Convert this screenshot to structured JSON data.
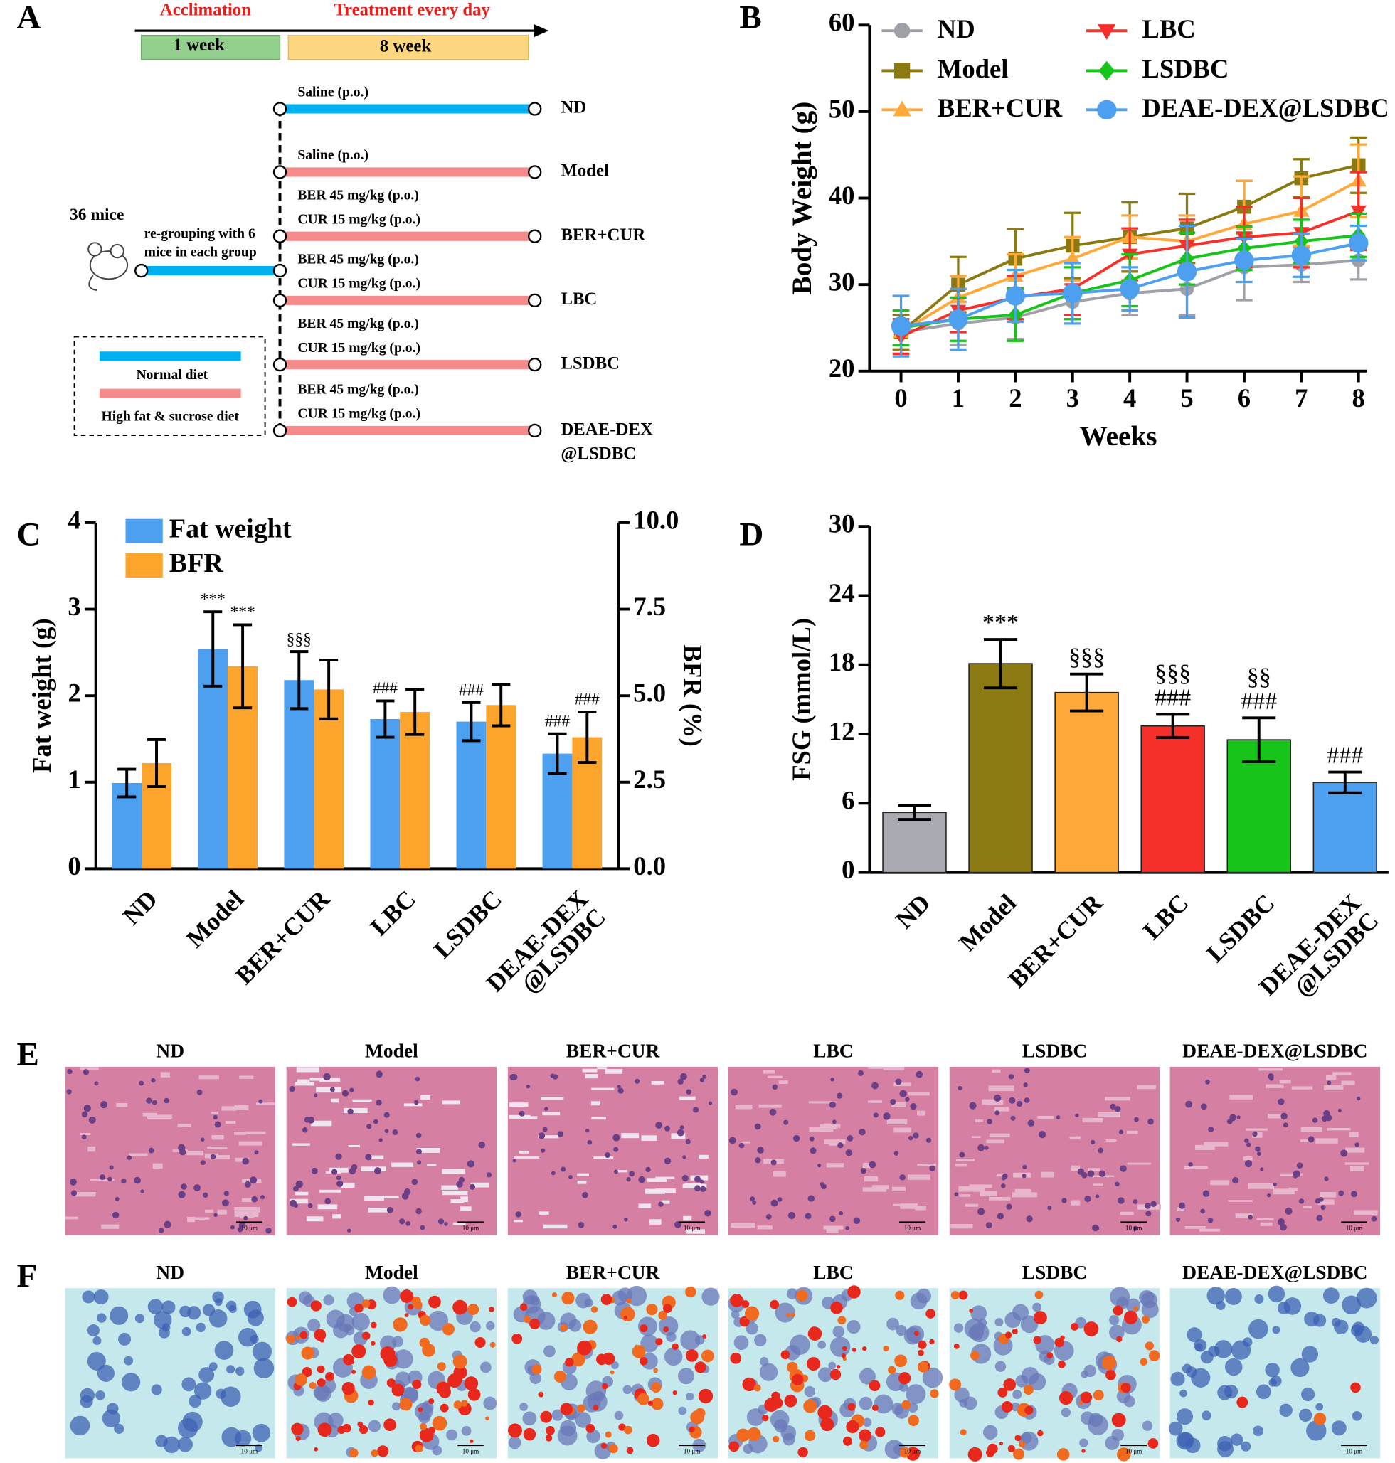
{
  "schematic": {
    "panel": "A",
    "acclimation": "Acclimation",
    "treatment": "Treatment every day",
    "phase1": "1 week",
    "phase2": "8 week",
    "mice": "36 mice",
    "regroup": "re-grouping with 6\nmice in each group",
    "legend": [
      "Normal diet",
      "High fat & sucrose diet"
    ],
    "groups": [
      {
        "label": "ND",
        "doses": [
          "Saline (p.o.)"
        ]
      },
      {
        "label": "Model",
        "doses": [
          "Saline (p.o.)"
        ]
      },
      {
        "label": "BER+CUR",
        "doses": [
          "BER 45 mg/kg (p.o.)",
          "CUR 15 mg/kg (p.o.)"
        ]
      },
      {
        "label": "LBC",
        "doses": [
          "BER 45 mg/kg (p.o.)",
          "CUR 15 mg/kg (p.o.)"
        ]
      },
      {
        "label": "LSDBC",
        "doses": [
          "BER 45 mg/kg (p.o.)",
          "CUR 15 mg/kg (p.o.)"
        ]
      },
      {
        "label": "DEAE-DEX\n@LSDBC",
        "doses": [
          "BER 45 mg/kg (p.o.)",
          "CUR 15 mg/kg (p.o.)"
        ]
      }
    ]
  },
  "chart_data": [
    {
      "type": "line",
      "panel": "B",
      "xlabel": "Weeks",
      "ylabel": "Body Weight (g)",
      "x": [
        0,
        1,
        2,
        3,
        4,
        5,
        6,
        7,
        8
      ],
      "xlim": [
        -0.55,
        8.15
      ],
      "xticks": [
        0,
        1,
        2,
        3,
        4,
        5,
        6,
        7,
        8
      ],
      "ylim": [
        20,
        60
      ],
      "yticks": [
        20,
        30,
        40,
        50,
        60
      ],
      "series": [
        {
          "name": "ND",
          "color": "#a0a0a8",
          "marker": "circle",
          "values": [
            24.5,
            25.5,
            26.2,
            28,
            29,
            29.5,
            32,
            32.3,
            32.8
          ],
          "errors": [
            2,
            2.5,
            2.5,
            2,
            2.5,
            3,
            3.8,
            2,
            2.2
          ]
        },
        {
          "name": "Model",
          "color": "#8b7a12",
          "marker": "square",
          "values": [
            24.5,
            30,
            33,
            34.5,
            35.5,
            36.5,
            39,
            42.3,
            43.8
          ],
          "errors": [
            2,
            3.2,
            3.4,
            3.8,
            4,
            4,
            3,
            2.2,
            3.2
          ]
        },
        {
          "name": "BER+CUR",
          "color": "#fea93a",
          "marker": "triangle",
          "values": [
            24.5,
            28.5,
            31,
            33,
            35.5,
            35,
            37,
            38.5,
            42
          ],
          "errors": [
            2.5,
            2.5,
            2.5,
            2.5,
            2.5,
            3,
            5,
            4,
            4.2
          ]
        },
        {
          "name": "LBC",
          "color": "#f5302a",
          "marker": "triangle-down",
          "values": [
            24,
            27,
            28.5,
            29.5,
            33.5,
            34.5,
            35.5,
            36,
            38.5
          ],
          "errors": [
            2,
            2.5,
            2.5,
            3,
            3,
            3,
            3.5,
            4,
            4.5
          ]
        },
        {
          "name": "LSDBC",
          "color": "#16c41a",
          "marker": "diamond",
          "values": [
            25,
            26,
            26.5,
            29,
            30.5,
            33,
            34.2,
            35,
            35.7
          ],
          "errors": [
            2,
            2.5,
            3,
            3,
            3,
            3,
            2.5,
            2.5,
            2.5
          ]
        },
        {
          "name": "DEAE-DEX@LSDBC",
          "color": "#4da0f0",
          "marker": "circle",
          "values": [
            25.2,
            26,
            28.7,
            29,
            29.5,
            31.5,
            32.8,
            33.4,
            34.8
          ],
          "errors": [
            3.5,
            3.5,
            3,
            3.5,
            2.5,
            5.3,
            2.5,
            2.5,
            2
          ]
        }
      ]
    },
    {
      "type": "bar",
      "panel": "C",
      "ylabel": "Fat weight (g)",
      "y2label": "BFR (%)",
      "categories": [
        "ND",
        "Model",
        "BER+CUR",
        "LBC",
        "LSDBC",
        "DEAE-DEX\n@LSDBC"
      ],
      "ylim": [
        0,
        4
      ],
      "yticks": [
        0,
        1,
        2,
        3,
        4
      ],
      "y2lim": [
        0,
        10
      ],
      "y2ticks": [
        {
          "value": 0,
          "label": "0.0"
        },
        2.5,
        {
          "value": 5,
          "label": "5.0"
        },
        7.5,
        {
          "value": 10,
          "label": "10.0"
        }
      ],
      "series": [
        {
          "name": "Fat weight",
          "color": "#4da0f0",
          "values": [
            0.99,
            2.54,
            2.18,
            1.73,
            1.7,
            1.33
          ],
          "errors": [
            0.16,
            0.43,
            0.33,
            0.21,
            0.22,
            0.23
          ],
          "annotations": [
            null,
            "***",
            "§§§",
            "###",
            "###",
            "###"
          ]
        },
        {
          "name": "BFR",
          "color": "#fca42c",
          "axis": "y2",
          "values": [
            3.05,
            5.85,
            5.18,
            4.53,
            4.73,
            3.8
          ],
          "errors": [
            0.68,
            1.2,
            0.85,
            0.65,
            0.6,
            0.73
          ],
          "annotations": [
            null,
            "***",
            null,
            null,
            null,
            "###"
          ]
        }
      ]
    },
    {
      "type": "bar",
      "panel": "D",
      "ylabel": "FSG (mmol/L)",
      "categories": [
        "ND",
        "Model",
        "BER+CUR",
        "LBC",
        "LSDBC",
        "DEAE-DEX\n@LSDBC"
      ],
      "ylim": [
        0,
        30
      ],
      "yticks": [
        0,
        6,
        12,
        18,
        24,
        30
      ],
      "values": [
        5.2,
        18.1,
        15.6,
        12.7,
        11.5,
        7.8
      ],
      "errors": [
        0.6,
        2.1,
        1.6,
        1.0,
        1.9,
        0.9
      ],
      "colors": [
        "#a9a9b2",
        "#8b7a12",
        "#fea93a",
        "#f5302a",
        "#16c41a",
        "#4da0f0"
      ],
      "annotations": [
        null,
        "***",
        "§§§",
        "§§§\n###",
        "§§\n###",
        "###"
      ]
    }
  ],
  "histology": [
    {
      "panel": "E",
      "titles": [
        "ND",
        "Model",
        "BER+CUR",
        "LBC",
        "LSDBC",
        "DEAE-DEX@LSDBC"
      ],
      "scale_bar": "10 μm"
    },
    {
      "panel": "F",
      "titles": [
        "ND",
        "Model",
        "BER+CUR",
        "LBC",
        "LSDBC",
        "DEAE-DEX@LSDBC"
      ],
      "scale_bar": "10 μm"
    }
  ]
}
